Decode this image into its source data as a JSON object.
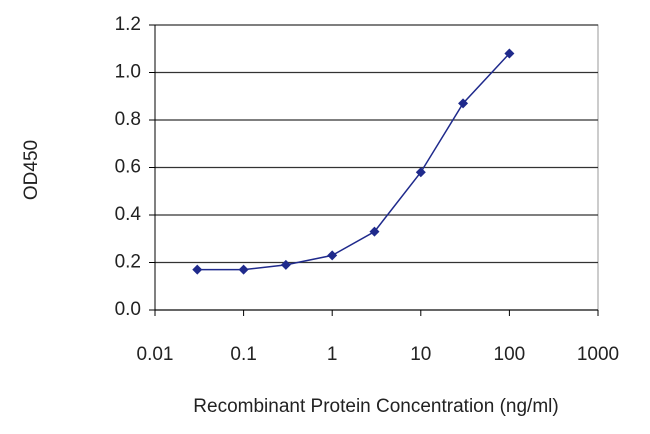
{
  "chart_data": {
    "type": "line",
    "x_label": "Recombinant Protein Concentration (ng/ml)",
    "y_label": "OD450",
    "x": [
      0.03,
      0.1,
      0.3,
      1,
      3,
      10,
      30,
      100
    ],
    "series": [
      {
        "color": "#1f2a8c",
        "values": [
          0.17,
          0.17,
          0.19,
          0.23,
          0.33,
          0.58,
          0.87,
          1.08
        ]
      }
    ],
    "xscale": "log",
    "xlim": [
      0.01,
      1000
    ],
    "xticks": [
      0.01,
      0.1,
      1,
      10,
      100,
      1000
    ],
    "ylim": [
      0,
      1.2
    ],
    "yticks": [
      {
        "value": 0,
        "label": "0.0"
      },
      0.2,
      0.4,
      0.6,
      0.8,
      {
        "value": 1,
        "label": "1.0"
      },
      1.2
    ],
    "grid": true
  }
}
